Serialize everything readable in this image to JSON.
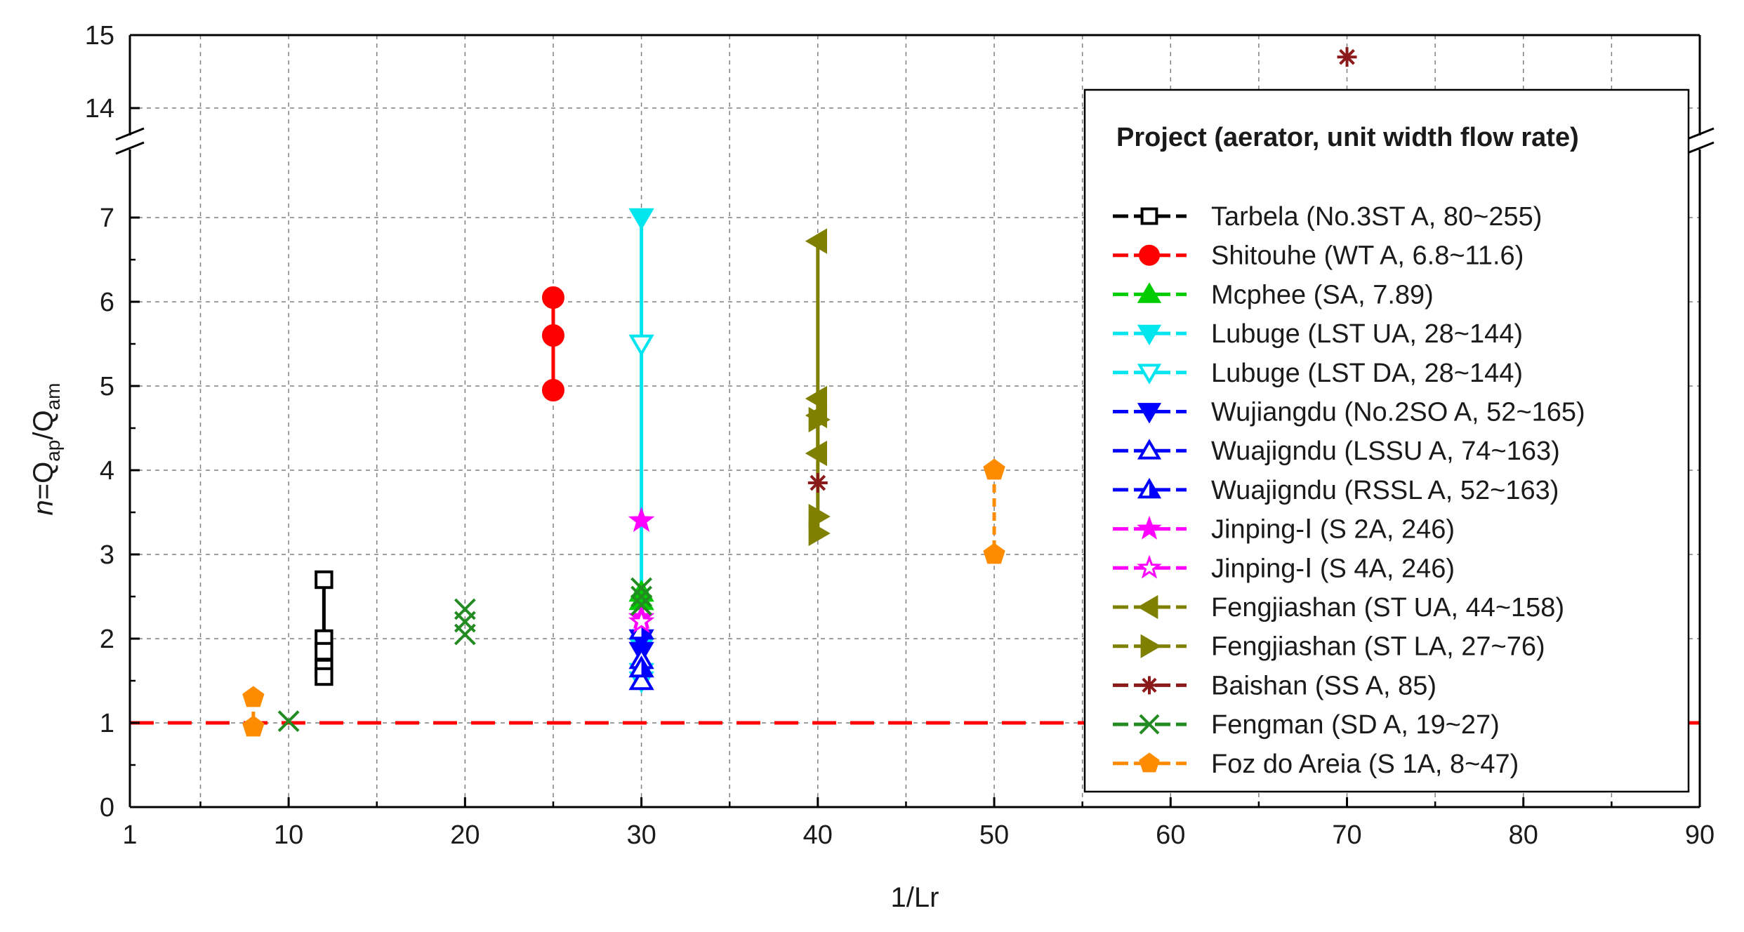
{
  "chart_data": {
    "type": "scatter",
    "title": "",
    "xlabel": "1/Lr",
    "ylabel": {
      "n": "n",
      "eq": "=Q",
      "ap": "ap",
      "slash": "/Q",
      "am": "am"
    },
    "xlim": [
      1,
      90
    ],
    "x_ticks": [
      1,
      10,
      20,
      30,
      40,
      50,
      60,
      70,
      80,
      90
    ],
    "x_tick_labels": [
      "1",
      "10",
      "20",
      "30",
      "40",
      "50",
      "60",
      "70",
      "80",
      "90"
    ],
    "y_ticks": [
      0,
      1,
      2,
      3,
      4,
      5,
      6,
      7,
      14,
      15
    ],
    "y_tick_labels": [
      "0",
      "1",
      "2",
      "3",
      "4",
      "5",
      "6",
      "7",
      "14",
      "15"
    ],
    "y_break": {
      "lower_max": 7.5,
      "upper_min": 13.5
    },
    "grid": true,
    "reference_line": {
      "y": 1,
      "color": "#ff0000"
    },
    "legend_title": "Project (aerator, unit width flow rate)",
    "legend_position": "right",
    "series": [
      {
        "name": "Tarbela (No.3ST A, 80~255)",
        "marker": "square",
        "filled": false,
        "color": "#000000",
        "connect": true,
        "dashed": false,
        "points": [
          [
            12,
            2.7
          ],
          [
            12,
            2.0
          ],
          [
            12,
            1.85
          ],
          [
            12,
            1.65
          ],
          [
            12,
            1.55
          ]
        ]
      },
      {
        "name": "Shitouhe (WT A, 6.8~11.6)",
        "marker": "circle",
        "filled": true,
        "color": "#ff0000",
        "connect": true,
        "dashed": false,
        "points": [
          [
            25,
            6.05
          ],
          [
            25,
            5.6
          ],
          [
            25,
            4.95
          ]
        ]
      },
      {
        "name": "Mcphee (SA, 7.89)",
        "marker": "triangle-up",
        "filled": true,
        "color": "#00cc00",
        "connect": false,
        "dashed": false,
        "points": [
          [
            30,
            2.55
          ],
          [
            30,
            2.45
          ]
        ]
      },
      {
        "name": "Lubuge (LST UA, 28~144)",
        "marker": "triangle-down",
        "filled": true,
        "color": "#00e5ee",
        "connect": true,
        "dashed": false,
        "points": [
          [
            30,
            7.0
          ],
          [
            30,
            1.9
          ]
        ]
      },
      {
        "name": "Lubuge (LST DA, 28~144)",
        "marker": "triangle-down",
        "filled": false,
        "color": "#00e5ee",
        "connect": false,
        "dashed": false,
        "points": [
          [
            30,
            5.5
          ],
          [
            30,
            1.6
          ],
          [
            30,
            1.5
          ]
        ]
      },
      {
        "name": "Wujiangdu (No.2SO A, 52~165)",
        "marker": "triangle-down",
        "filled": true,
        "color": "#0000ff",
        "connect": false,
        "dashed": false,
        "points": [
          [
            30,
            1.85
          ],
          [
            30,
            2.0
          ]
        ]
      },
      {
        "name": "Wuajigndu (LSSU A, 74~163)",
        "marker": "triangle-up",
        "filled": false,
        "color": "#0000ff",
        "connect": false,
        "dashed": false,
        "points": [
          [
            30,
            1.5
          ],
          [
            30,
            1.75
          ]
        ]
      },
      {
        "name": "Wuajigndu (RSSL A, 52~163)",
        "marker": "triangle-up-half",
        "filled": true,
        "color": "#0000ff",
        "connect": false,
        "dashed": false,
        "points": [
          [
            30,
            1.65
          ],
          [
            30,
            2.1
          ]
        ]
      },
      {
        "name": "Jinping-Ⅰ (S 2A, 246)",
        "marker": "star",
        "filled": true,
        "color": "#ff00ff",
        "connect": false,
        "dashed": false,
        "points": [
          [
            30,
            3.4
          ],
          [
            30,
            2.25
          ]
        ]
      },
      {
        "name": "Jinping-Ⅰ (S 4A, 246)",
        "marker": "star",
        "filled": false,
        "color": "#ff00ff",
        "connect": false,
        "dashed": false,
        "points": [
          [
            30,
            2.2
          ]
        ]
      },
      {
        "name": "Fengjiashan (ST UA, 44~158)",
        "marker": "triangle-left",
        "filled": true,
        "color": "#808000",
        "connect": true,
        "dashed": false,
        "points": [
          [
            40,
            6.72
          ],
          [
            40,
            4.85
          ],
          [
            40,
            4.65
          ],
          [
            40,
            4.2
          ]
        ]
      },
      {
        "name": "Fengjiashan (ST LA, 27~76)",
        "marker": "triangle-right",
        "filled": true,
        "color": "#808000",
        "connect": true,
        "dashed": false,
        "points": [
          [
            40,
            4.6
          ],
          [
            40,
            3.45
          ],
          [
            40,
            3.25
          ]
        ]
      },
      {
        "name": "Baishan (SS A, 85)",
        "marker": "asterisk",
        "filled": false,
        "color": "#8b1a1a",
        "connect": false,
        "dashed": false,
        "points": [
          [
            40,
            3.85
          ],
          [
            70,
            14.7
          ]
        ]
      },
      {
        "name": "Fengman (SD A, 19~27)",
        "marker": "x",
        "filled": false,
        "color": "#228b22",
        "connect": false,
        "dashed": false,
        "points": [
          [
            10,
            1.02
          ],
          [
            20,
            2.35
          ],
          [
            20,
            2.2
          ],
          [
            20,
            2.05
          ],
          [
            30,
            2.6
          ],
          [
            30,
            2.5
          ],
          [
            30,
            2.4
          ]
        ]
      },
      {
        "name": "Foz do Areia (S 1A, 8~47)",
        "marker": "pentagon",
        "filled": true,
        "color": "#ff8c00",
        "connect": true,
        "dashed": true,
        "points": [
          [
            8,
            1.3
          ],
          [
            8,
            0.95
          ],
          [
            50,
            4.0
          ],
          [
            50,
            3.0
          ]
        ]
      }
    ]
  }
}
